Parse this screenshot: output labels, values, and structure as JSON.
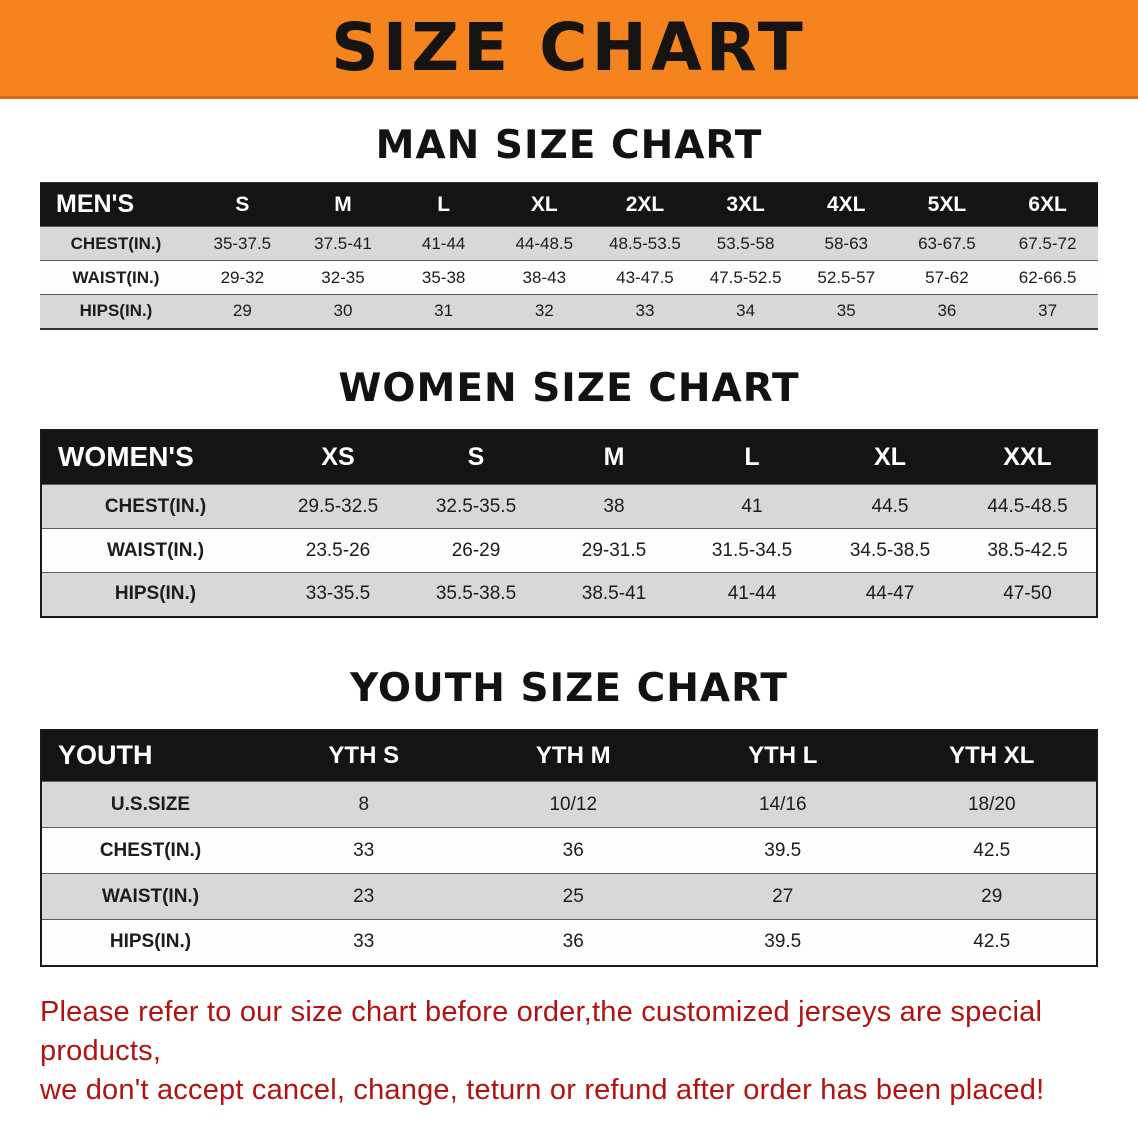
{
  "colors": {
    "banner_bg": "#f5831e",
    "banner_text": "#161410",
    "header_bg": "#141414",
    "header_text": "#ffffff",
    "row_alt_bg": "#d8d8d8",
    "row_bg": "#fdfdfd",
    "disclaimer_text": "#b31212",
    "text": "#151515"
  },
  "banner": {
    "title": "SIZE CHART"
  },
  "men": {
    "heading": "MAN SIZE CHART",
    "label": "MEN'S",
    "columns": [
      "S",
      "M",
      "L",
      "XL",
      "2XL",
      "3XL",
      "4XL",
      "5XL",
      "6XL"
    ],
    "rows": [
      {
        "label": "CHEST(IN.)",
        "values": [
          "35-37.5",
          "37.5-41",
          "41-44",
          "44-48.5",
          "48.5-53.5",
          "53.5-58",
          "58-63",
          "63-67.5",
          "67.5-72"
        ]
      },
      {
        "label": "WAIST(IN.)",
        "values": [
          "29-32",
          "32-35",
          "35-38",
          "38-43",
          "43-47.5",
          "47.5-52.5",
          "52.5-57",
          "57-62",
          "62-66.5"
        ]
      },
      {
        "label": "HIPS(IN.)",
        "values": [
          "29",
          "30",
          "31",
          "32",
          "33",
          "34",
          "35",
          "36",
          "37"
        ]
      }
    ]
  },
  "women": {
    "heading": "WOMEN SIZE CHART",
    "label": "WOMEN'S",
    "columns": [
      "XS",
      "S",
      "M",
      "L",
      "XL",
      "XXL"
    ],
    "rows": [
      {
        "label": "CHEST(IN.)",
        "values": [
          "29.5-32.5",
          "32.5-35.5",
          "38",
          "41",
          "44.5",
          "44.5-48.5"
        ]
      },
      {
        "label": "WAIST(IN.)",
        "values": [
          "23.5-26",
          "26-29",
          "29-31.5",
          "31.5-34.5",
          "34.5-38.5",
          "38.5-42.5"
        ]
      },
      {
        "label": "HIPS(IN.)",
        "values": [
          "33-35.5",
          "35.5-38.5",
          "38.5-41",
          "41-44",
          "44-47",
          "47-50"
        ]
      }
    ]
  },
  "youth": {
    "heading": "YOUTH SIZE CHART",
    "label": "YOUTH",
    "columns": [
      "YTH S",
      "YTH M",
      "YTH L",
      "YTH XL"
    ],
    "rows": [
      {
        "label": "U.S.SIZE",
        "values": [
          "8",
          "10/12",
          "14/16",
          "18/20"
        ]
      },
      {
        "label": "CHEST(IN.)",
        "values": [
          "33",
          "36",
          "39.5",
          "42.5"
        ]
      },
      {
        "label": "WAIST(IN.)",
        "values": [
          "23",
          "25",
          "27",
          "29"
        ]
      },
      {
        "label": "HIPS(IN.)",
        "values": [
          "33",
          "36",
          "39.5",
          "42.5"
        ]
      }
    ]
  },
  "disclaimer": {
    "line1": "Please refer to our size chart before order,the customized jerseys are special products,",
    "line2": "we don't accept cancel, change, teturn or refund after order has been placed!"
  }
}
